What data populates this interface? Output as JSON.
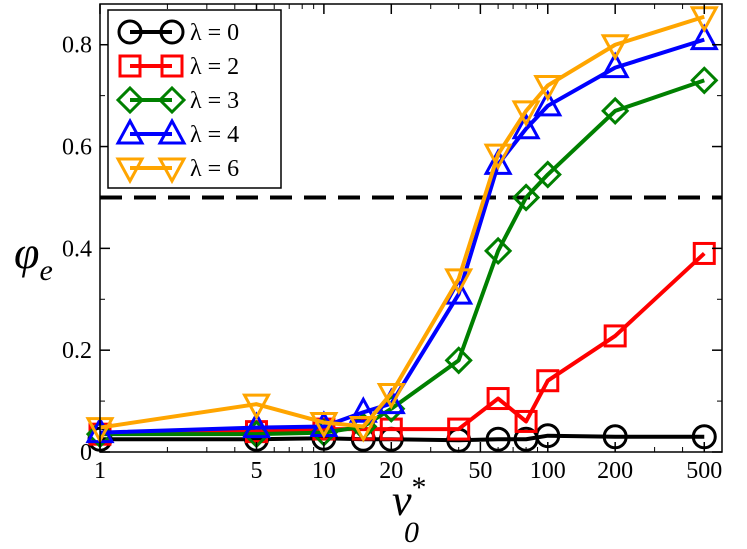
{
  "chart_data": {
    "type": "line",
    "xscale": "log",
    "xlim": [
      1,
      600
    ],
    "ylim": [
      0,
      0.88
    ],
    "xticks": [
      {
        "value": 1,
        "label": "1"
      },
      {
        "value": 5,
        "label": "5"
      },
      {
        "value": 10,
        "label": "10"
      },
      {
        "value": 20,
        "label": "20"
      },
      {
        "value": 50,
        "label": "50"
      },
      {
        "value": 100,
        "label": "100"
      },
      {
        "value": 200,
        "label": "200"
      },
      {
        "value": 500,
        "label": "500"
      }
    ],
    "yticks": [
      {
        "value": 0,
        "label": "0"
      },
      {
        "value": 0.2,
        "label": "0.2"
      },
      {
        "value": 0.4,
        "label": "0.4"
      },
      {
        "value": 0.6,
        "label": "0.6"
      },
      {
        "value": 0.8,
        "label": "0.8"
      }
    ],
    "xlabel": {
      "main": "v",
      "sup": "*",
      "sub": "0"
    },
    "ylabel": {
      "main": "φ",
      "sub": "e"
    },
    "reference_line": {
      "y": 0.5,
      "style": "dashed",
      "color": "#000000"
    },
    "legend": {
      "position": "top-left"
    },
    "series": [
      {
        "name": "λ = 0",
        "color": "#000000",
        "marker": "circle",
        "x": [
          1,
          5,
          10,
          15,
          20,
          40,
          60,
          80,
          100,
          200,
          500
        ],
        "y": [
          0.025,
          0.025,
          0.027,
          0.025,
          0.025,
          0.023,
          0.025,
          0.025,
          0.032,
          0.03,
          0.03
        ]
      },
      {
        "name": "λ = 2",
        "color": "#ff0000",
        "marker": "square",
        "x": [
          1,
          5,
          10,
          15,
          20,
          40,
          60,
          80,
          100,
          200,
          500
        ],
        "y": [
          0.035,
          0.04,
          0.045,
          0.045,
          0.045,
          0.045,
          0.105,
          0.06,
          0.14,
          0.228,
          0.39
        ]
      },
      {
        "name": "λ = 3",
        "color": "#008000",
        "marker": "diamond",
        "x": [
          1,
          5,
          10,
          15,
          20,
          40,
          60,
          80,
          100,
          200,
          500
        ],
        "y": [
          0.035,
          0.035,
          0.038,
          0.05,
          0.085,
          0.18,
          0.395,
          0.5,
          0.545,
          0.67,
          0.73
        ]
      },
      {
        "name": "λ = 4",
        "color": "#0000ff",
        "marker": "triangle-up",
        "x": [
          1,
          5,
          10,
          15,
          20,
          40,
          60,
          80,
          100,
          200,
          500
        ],
        "y": [
          0.038,
          0.048,
          0.05,
          0.078,
          0.095,
          0.31,
          0.565,
          0.635,
          0.68,
          0.755,
          0.81
        ]
      },
      {
        "name": "λ = 6",
        "color": "#ffa500",
        "marker": "triangle-down",
        "x": [
          1,
          5,
          10,
          15,
          20,
          40,
          60,
          80,
          100,
          200,
          500
        ],
        "y": [
          0.048,
          0.094,
          0.058,
          0.05,
          0.115,
          0.34,
          0.585,
          0.67,
          0.72,
          0.8,
          0.855
        ]
      }
    ]
  }
}
